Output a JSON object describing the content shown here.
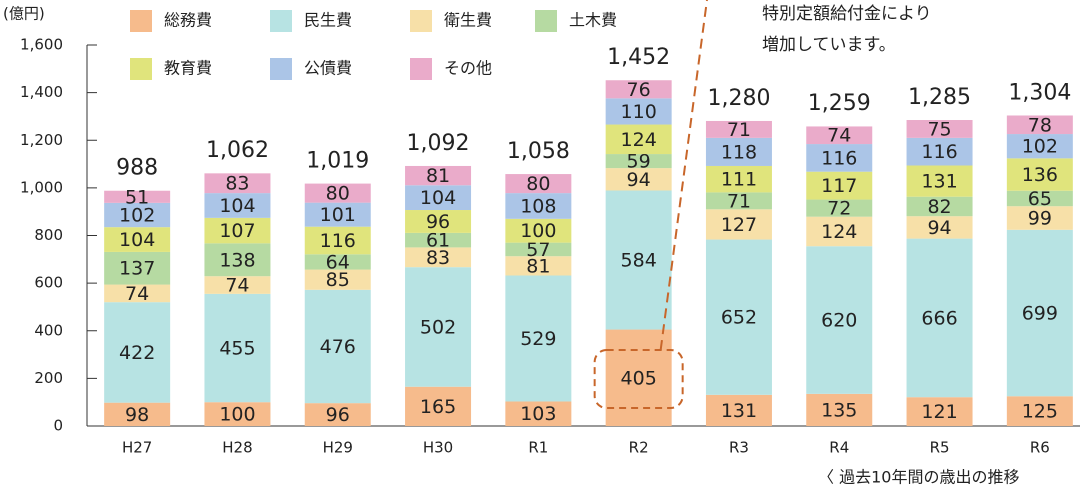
{
  "chart_data": {
    "type": "stacked_bar",
    "y_label": "(億円)",
    "categories": [
      "H27",
      "H28",
      "H29",
      "H30",
      "R1",
      "R2",
      "R3",
      "R4",
      "R5",
      "R6"
    ],
    "series": [
      {
        "name": "総務費",
        "color": "#f6bb8c",
        "values": [
          98,
          100,
          96,
          165,
          103,
          405,
          131,
          135,
          121,
          125
        ]
      },
      {
        "name": "民生費",
        "color": "#b7e3e3",
        "values": [
          422,
          455,
          476,
          502,
          529,
          584,
          652,
          620,
          666,
          699
        ]
      },
      {
        "name": "衛生費",
        "color": "#f7e0a8",
        "values": [
          74,
          74,
          85,
          83,
          81,
          94,
          127,
          124,
          94,
          99
        ]
      },
      {
        "name": "土木費",
        "color": "#b6daa2",
        "values": [
          137,
          138,
          64,
          61,
          57,
          59,
          71,
          72,
          82,
          65
        ]
      },
      {
        "name": "教育費",
        "color": "#e0e47c",
        "values": [
          104,
          107,
          116,
          96,
          100,
          124,
          111,
          117,
          131,
          136
        ]
      },
      {
        "name": "公債費",
        "color": "#abc5e7",
        "values": [
          102,
          104,
          101,
          104,
          108,
          110,
          118,
          116,
          116,
          102
        ]
      },
      {
        "name": "その他",
        "color": "#eaabca",
        "values": [
          51,
          83,
          80,
          81,
          80,
          76,
          71,
          74,
          75,
          78
        ]
      }
    ],
    "totals": [
      988,
      1062,
      1019,
      1092,
      1058,
      1452,
      1280,
      1259,
      1285,
      1304
    ],
    "total_labels": [
      "988",
      "1,062",
      "1,019",
      "1,092",
      "1,058",
      "1,452",
      "1,280",
      "1,259",
      "1,285",
      "1,304"
    ],
    "ylim": [
      0,
      1600
    ],
    "yticks": [
      0,
      200,
      400,
      600,
      800,
      {
        "value": 1000,
        "label": "1,000"
      },
      {
        "value": 1200,
        "label": "1,200"
      },
      {
        "value": 1400,
        "label": "1,400"
      },
      {
        "value": 1600,
        "label": "1,600"
      }
    ],
    "annotation": [
      "特別定額給付金により",
      "増加しています。"
    ],
    "footer": "〈 過去10年間の歳出の推移"
  }
}
